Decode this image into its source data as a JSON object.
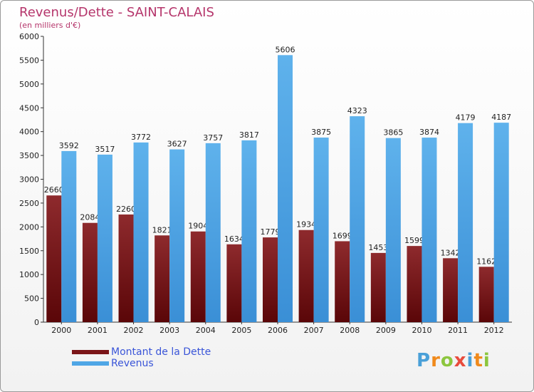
{
  "header": {
    "title": "Revenus/Dette - SAINT-CALAIS",
    "subtitle": "(en milliers d'€)"
  },
  "colors": {
    "title": "#b5356b",
    "debt": "#7a1518",
    "revenue": "#4fa6e6",
    "legend_text": "#3a55d8"
  },
  "legend": {
    "items": [
      {
        "label": "Montant de la Dette",
        "color": "#7a1518"
      },
      {
        "label": "Revenus",
        "color": "#4fa6e6"
      }
    ]
  },
  "logo": {
    "letters": [
      {
        "ch": "P",
        "color": "#4aa0d8"
      },
      {
        "ch": "r",
        "color": "#f08a1c"
      },
      {
        "ch": "o",
        "color": "#8cc63e"
      },
      {
        "ch": "x",
        "color": "#e84c3d"
      },
      {
        "ch": "i",
        "color": "#4aa0d8"
      },
      {
        "ch": "t",
        "color": "#f08a1c"
      },
      {
        "ch": "i",
        "color": "#8cc63e"
      }
    ]
  },
  "chart_data": {
    "type": "bar",
    "title": "Revenus/Dette - SAINT-CALAIS",
    "subtitle": "(en milliers d'€)",
    "categories": [
      "2000",
      "2001",
      "2002",
      "2003",
      "2004",
      "2005",
      "2006",
      "2007",
      "2008",
      "2009",
      "2010",
      "2011",
      "2012"
    ],
    "series": [
      {
        "name": "Montant de la Dette",
        "values": [
          2660,
          2084,
          2260,
          1821,
          1904,
          1634,
          1779,
          1934,
          1699,
          1453,
          1599,
          1342,
          1162
        ]
      },
      {
        "name": "Revenus",
        "values": [
          3592,
          3517,
          3772,
          3627,
          3757,
          3817,
          5606,
          3875,
          4323,
          3865,
          3874,
          4179,
          4187
        ]
      }
    ],
    "ylim": [
      0,
      6000
    ],
    "yticks": [
      0,
      500,
      1000,
      1500,
      2000,
      2500,
      3000,
      3500,
      4000,
      4500,
      5000,
      5500,
      6000
    ],
    "grid": false,
    "legend_position": "bottom-left"
  }
}
